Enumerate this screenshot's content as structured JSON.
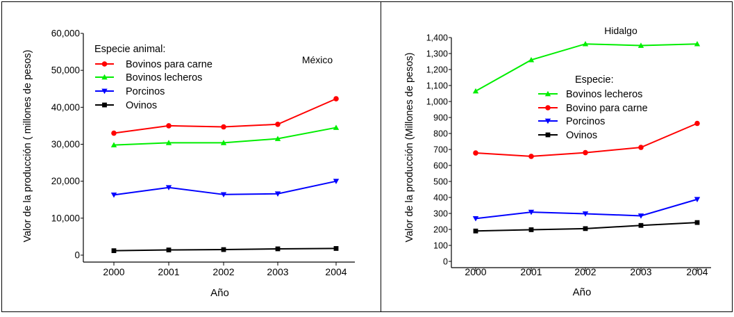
{
  "chart_data": [
    {
      "type": "line",
      "annotation": "México",
      "xlabel": "Año",
      "ylabel": "Valor de la producción ( millones de pesos)",
      "legend_title": "Especie animal:",
      "legend_placement": "top-left",
      "grid": false,
      "categories": [
        "2000",
        "2001",
        "2002",
        "2003",
        "2004"
      ],
      "ylim": [
        0,
        60000
      ],
      "yticks": [
        0,
        10000,
        20000,
        30000,
        40000,
        50000,
        60000
      ],
      "ytick_labels": [
        "0",
        "10,000",
        "20,000",
        "30,000",
        "40,000",
        "50,000",
        "60,000"
      ],
      "series": [
        {
          "name": "Bovinos para carne",
          "color": "#ff0000",
          "marker": "circle",
          "values": [
            33000,
            35000,
            34700,
            35400,
            42300
          ]
        },
        {
          "name": "Bovinos lecheros",
          "color": "#00ee00",
          "marker": "triangle-up",
          "values": [
            29800,
            30400,
            30400,
            31500,
            34500
          ]
        },
        {
          "name": "Porcinos",
          "color": "#0000ff",
          "marker": "triangle-down",
          "values": [
            16300,
            18300,
            16400,
            16600,
            20000
          ]
        },
        {
          "name": "Ovinos",
          "color": "#000000",
          "marker": "square",
          "values": [
            1200,
            1400,
            1500,
            1700,
            1800
          ]
        }
      ]
    },
    {
      "type": "line",
      "annotation": "Hidalgo",
      "xlabel": "Año",
      "ylabel": "Valor de la producción (Millones de pesos)",
      "legend_title": "Especie:",
      "legend_placement": "center",
      "grid": false,
      "categories": [
        "2000",
        "2001",
        "2002",
        "2003",
        "2004"
      ],
      "ylim": [
        0,
        1400
      ],
      "yticks": [
        0,
        100,
        200,
        300,
        400,
        500,
        600,
        700,
        800,
        900,
        1000,
        1100,
        1200,
        1300,
        1400
      ],
      "ytick_labels": [
        "0",
        "100",
        "200",
        "300",
        "400",
        "500",
        "600",
        "700",
        "800",
        "900",
        "1,000",
        "1,100",
        "1,200",
        "1,300",
        "1,400"
      ],
      "series": [
        {
          "name": "Bovinos lecheros",
          "color": "#00ee00",
          "marker": "triangle-up",
          "values": [
            1065,
            1260,
            1360,
            1350,
            1360
          ]
        },
        {
          "name": "Bovino para carne",
          "color": "#ff0000",
          "marker": "circle",
          "values": [
            678,
            657,
            680,
            713,
            863
          ]
        },
        {
          "name": "Porcinos",
          "color": "#0000ff",
          "marker": "triangle-down",
          "values": [
            268,
            308,
            298,
            285,
            388
          ]
        },
        {
          "name": "Ovinos",
          "color": "#000000",
          "marker": "square",
          "values": [
            190,
            198,
            205,
            225,
            243
          ]
        }
      ]
    }
  ]
}
